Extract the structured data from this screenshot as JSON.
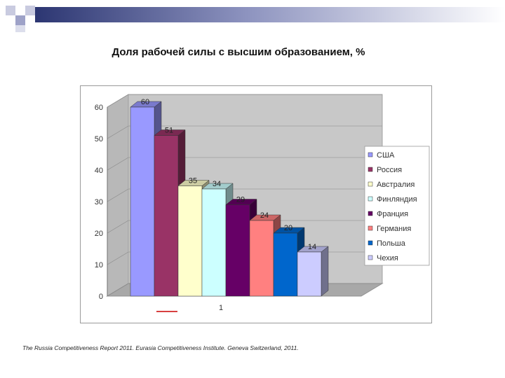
{
  "slide": {
    "title": "Доля рабочей силы с высшим образованием, %",
    "source": "The Russia Competitiveness Report 2011. Eurasia Competitiveness Institute. Geneva Switzerland, 2011."
  },
  "chart_data": {
    "type": "bar",
    "title": "",
    "xlabel": "",
    "ylabel": "",
    "ylim": [
      0,
      60
    ],
    "yticks": [
      0,
      10,
      20,
      30,
      40,
      50,
      60
    ],
    "category_label": "1",
    "grid": true,
    "legend_position": "right",
    "series": [
      {
        "name": "США",
        "value": 60,
        "color": "#9999ff"
      },
      {
        "name": "Россия",
        "value": 51,
        "color": "#993366"
      },
      {
        "name": "Австралия",
        "value": 35,
        "color": "#ffffcc"
      },
      {
        "name": "Финляндия",
        "value": 34,
        "color": "#ccffff"
      },
      {
        "name": "Франция",
        "value": 29,
        "color": "#660066"
      },
      {
        "name": "Германия",
        "value": 24,
        "color": "#ff8080"
      },
      {
        "name": "Польша",
        "value": 20,
        "color": "#0066cc"
      },
      {
        "name": "Чехия",
        "value": 14,
        "color": "#ccccff"
      }
    ]
  }
}
